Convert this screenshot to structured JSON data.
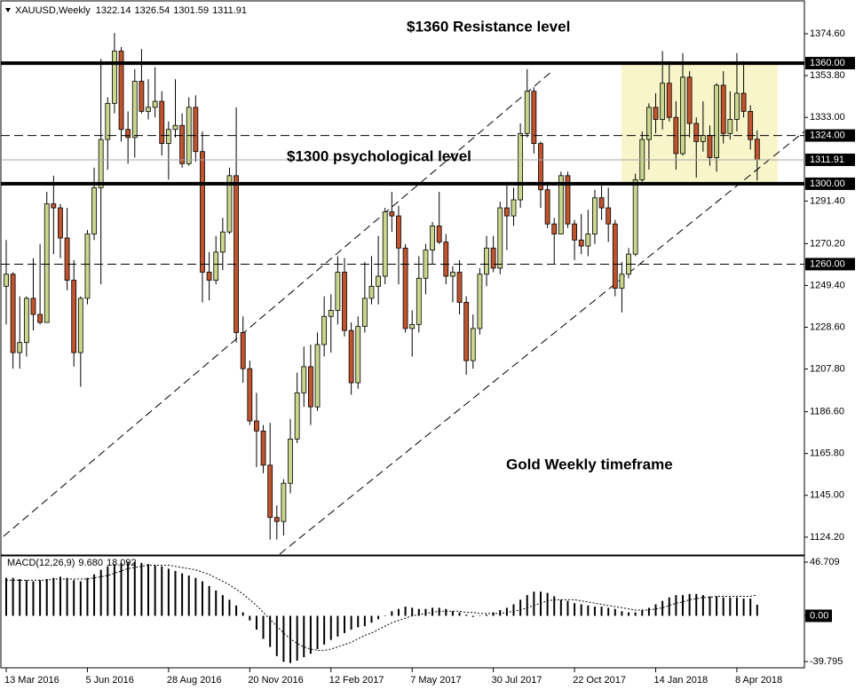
{
  "chart_data": [
    {
      "type": "candlestick",
      "title": "XAUUSD,Weekly",
      "categories": [
        "13 Mar 2016",
        null,
        null,
        null,
        null,
        null,
        null,
        null,
        null,
        null,
        null,
        null,
        "5 Jun 2016",
        null,
        null,
        null,
        null,
        null,
        null,
        null,
        null,
        null,
        null,
        null,
        "28 Aug 2016",
        null,
        null,
        null,
        null,
        null,
        null,
        null,
        null,
        null,
        null,
        null,
        "20 Nov 2016",
        null,
        null,
        null,
        null,
        null,
        null,
        null,
        null,
        null,
        null,
        null,
        "12 Feb 2017",
        null,
        null,
        null,
        null,
        null,
        null,
        null,
        null,
        null,
        null,
        null,
        "7 May 2017",
        null,
        null,
        null,
        null,
        null,
        null,
        null,
        null,
        null,
        null,
        null,
        "30 Jul 2017",
        null,
        null,
        null,
        null,
        null,
        null,
        null,
        null,
        null,
        null,
        null,
        "22 Oct 2017",
        null,
        null,
        null,
        null,
        null,
        null,
        null,
        null,
        null,
        null,
        null,
        "14 Jan 2018",
        null,
        null,
        null,
        null,
        null,
        null,
        null,
        null,
        null,
        null,
        null,
        "8 Apr 2018",
        null,
        null,
        null
      ],
      "open": [
        1249,
        1255,
        1216,
        1221,
        1243,
        1235,
        1231,
        1290,
        1288,
        1273,
        1252,
        1216,
        1243,
        1275,
        1298,
        1322,
        1340,
        1366,
        1327,
        1323,
        1351,
        1336,
        1338,
        1341,
        1320,
        1327,
        1329,
        1310,
        1338,
        1316,
        1256,
        1252,
        1266,
        1276,
        1304,
        1226,
        1208,
        1182,
        1177,
        1160,
        1134,
        1132,
        1151,
        1173,
        1196,
        1209,
        1189,
        1220,
        1234,
        1237,
        1256,
        1227,
        1201,
        1229,
        1243,
        1249,
        1254,
        1286,
        1284,
        1268,
        1228,
        1230,
        1253,
        1267,
        1279,
        1271,
        1254,
        1256,
        1241,
        1212,
        1228,
        1255,
        1268,
        1258,
        1288,
        1284,
        1292,
        1325,
        1346,
        1320,
        1297,
        1280,
        1275,
        1304,
        1280,
        1272,
        1269,
        1275,
        1293,
        1288,
        1280,
        1248,
        1255,
        1265,
        1302,
        1322,
        1338,
        1332,
        1350,
        1333,
        1315,
        1353,
        1330,
        1321,
        1324,
        1313,
        1349,
        1325,
        1332,
        1345,
        1336,
        1322.14
      ],
      "high": [
        1272,
        1256,
        1244,
        1244,
        1263,
        1270,
        1296,
        1304,
        1290,
        1288,
        1262,
        1244,
        1277,
        1308,
        1362,
        1343,
        1375,
        1368,
        1336,
        1357,
        1367,
        1352,
        1358,
        1346,
        1331,
        1352,
        1335,
        1343,
        1344,
        1326,
        1266,
        1274,
        1283,
        1308,
        1338,
        1234,
        1212,
        1196,
        1180,
        1181,
        1140,
        1153,
        1183,
        1206,
        1219,
        1220,
        1226,
        1244,
        1245,
        1264,
        1263,
        1231,
        1234,
        1261,
        1264,
        1274,
        1288,
        1296,
        1289,
        1270,
        1237,
        1264,
        1270,
        1281,
        1296,
        1275,
        1259,
        1262,
        1244,
        1235,
        1258,
        1274,
        1274,
        1291,
        1301,
        1298,
        1330,
        1357,
        1348,
        1321,
        1301,
        1283,
        1306,
        1306,
        1282,
        1285,
        1287,
        1297,
        1299,
        1298,
        1282,
        1261,
        1268,
        1305,
        1326,
        1340,
        1345,
        1366,
        1361,
        1341,
        1365,
        1356,
        1333,
        1341,
        1329,
        1350,
        1356,
        1346,
        1365,
        1361,
        1339,
        1326.54
      ],
      "low": [
        1230,
        1208,
        1208,
        1214,
        1227,
        1230,
        1231,
        1265,
        1263,
        1247,
        1209,
        1199,
        1240,
        1272,
        1250,
        1307,
        1335,
        1321,
        1310,
        1313,
        1335,
        1332,
        1333,
        1314,
        1302,
        1323,
        1308,
        1309,
        1311,
        1241,
        1242,
        1250,
        1257,
        1275,
        1221,
        1201,
        1180,
        1159,
        1156,
        1123,
        1123,
        1125,
        1146,
        1171,
        1189,
        1180,
        1187,
        1214,
        1216,
        1230,
        1224,
        1195,
        1198,
        1226,
        1240,
        1240,
        1250,
        1276,
        1250,
        1226,
        1214,
        1226,
        1245,
        1260,
        1270,
        1250,
        1241,
        1235,
        1205,
        1208,
        1225,
        1249,
        1256,
        1255,
        1267,
        1279,
        1288,
        1323,
        1315,
        1288,
        1278,
        1260,
        1275,
        1278,
        1262,
        1265,
        1264,
        1270,
        1282,
        1271,
        1244,
        1236,
        1253,
        1264,
        1301,
        1307,
        1325,
        1327,
        1331,
        1307,
        1314,
        1323,
        1303,
        1316,
        1309,
        1306,
        1320,
        1322,
        1326,
        1333,
        1317,
        1301.59
      ],
      "close": [
        1255,
        1216,
        1221,
        1243,
        1235,
        1231,
        1290,
        1288,
        1273,
        1252,
        1216,
        1243,
        1275,
        1298,
        1322,
        1340,
        1366,
        1327,
        1323,
        1351,
        1336,
        1338,
        1341,
        1320,
        1327,
        1329,
        1310,
        1338,
        1316,
        1256,
        1252,
        1266,
        1276,
        1304,
        1226,
        1208,
        1182,
        1177,
        1160,
        1134,
        1132,
        1151,
        1173,
        1196,
        1209,
        1189,
        1220,
        1234,
        1237,
        1256,
        1227,
        1201,
        1229,
        1243,
        1249,
        1254,
        1286,
        1284,
        1268,
        1228,
        1230,
        1253,
        1267,
        1279,
        1271,
        1254,
        1256,
        1241,
        1212,
        1228,
        1255,
        1268,
        1258,
        1288,
        1284,
        1292,
        1325,
        1346,
        1320,
        1297,
        1280,
        1275,
        1304,
        1280,
        1272,
        1269,
        1275,
        1293,
        1288,
        1280,
        1248,
        1255,
        1265,
        1302,
        1322,
        1338,
        1332,
        1350,
        1333,
        1315,
        1353,
        1330,
        1321,
        1324,
        1313,
        1349,
        1325,
        1332,
        1345,
        1336,
        1322,
        1311.91
      ],
      "up_color": "#c8d78d",
      "down_color": "#c0542e",
      "ylim": [
        1115.3,
        1391.4
      ],
      "yticks": [
        {
          "value": 1374.6,
          "label": "1374.60"
        },
        {
          "value": 1353.8,
          "label": "1353.80"
        },
        {
          "value": 1333,
          "label": "1333.00"
        },
        {
          "value": 1291.4,
          "label": "1291.40"
        },
        {
          "value": 1270.2,
          "label": "1270.20"
        },
        {
          "value": 1249.4,
          "label": "1249.40"
        },
        {
          "value": 1228.6,
          "label": "1228.60"
        },
        {
          "value": 1207.8,
          "label": "1207.80"
        },
        {
          "value": 1186.6,
          "label": "1186.60"
        },
        {
          "value": 1165.8,
          "label": "1165.80"
        },
        {
          "value": 1145,
          "label": "1145.00"
        },
        {
          "value": 1124.2,
          "label": "1124.20"
        }
      ],
      "levels": [
        {
          "value": 1360,
          "label": "1360.00",
          "style": "solid"
        },
        {
          "value": 1324,
          "label": "1324.00",
          "style": "dashed"
        },
        {
          "value": 1300,
          "label": "1300.00",
          "style": "solid"
        },
        {
          "value": 1260,
          "label": "1260.00",
          "style": "dashed"
        }
      ],
      "annotations": [
        "$1360 Resistance level",
        "$1300 psychological level",
        "Gold Weekly timeframe"
      ]
    },
    {
      "type": "macd",
      "title": "MACD(12,26,9)",
      "readout": [
        {
          "value": 9.68,
          "label": "9.680"
        },
        {
          "value": 18.092,
          "label": "18.092"
        }
      ],
      "series": [
        {
          "name": "MACD",
          "color": "#000000",
          "values": [
            33,
            33,
            32,
            31,
            30,
            31,
            32,
            33,
            34,
            33,
            31,
            30,
            33,
            36,
            40,
            43,
            45,
            46,
            47,
            47,
            46,
            45,
            44,
            43,
            41,
            39,
            37,
            35,
            33,
            30,
            26,
            22,
            18,
            14,
            9,
            3,
            -4,
            -12,
            -20,
            -27,
            -35,
            -40,
            -41,
            -39,
            -36,
            -33,
            -29,
            -25,
            -21,
            -18,
            -15,
            -12,
            -10,
            -9,
            -6,
            -3,
            0,
            4,
            6,
            8,
            7,
            6,
            6,
            7,
            7,
            6,
            4,
            3,
            1,
            -1,
            0,
            1,
            3,
            5,
            7,
            10,
            14,
            18,
            21,
            21,
            20,
            17,
            14,
            13,
            11,
            10,
            9,
            8,
            8,
            7,
            6,
            4,
            3,
            3,
            5,
            7,
            10,
            13,
            16,
            18,
            18,
            19,
            19,
            18,
            17,
            17,
            16,
            16,
            16,
            15,
            15,
            9.68
          ]
        },
        {
          "name": "Signal",
          "color": "#000000",
          "values": [
            31,
            31,
            31,
            31,
            31,
            31,
            31,
            32,
            32,
            32,
            32,
            32,
            32,
            33,
            34,
            35,
            37,
            39,
            41,
            42,
            43,
            44,
            44,
            44,
            44,
            43,
            42,
            41,
            40,
            38,
            36,
            33,
            30,
            27,
            23,
            19,
            14,
            9,
            3,
            -3,
            -9,
            -15,
            -20,
            -24,
            -27,
            -29,
            -30,
            -30,
            -29,
            -27,
            -25,
            -23,
            -20,
            -17,
            -15,
            -12,
            -9,
            -6,
            -4,
            -2,
            0,
            1,
            2,
            3,
            4,
            4,
            4,
            4,
            3,
            3,
            2,
            2,
            2,
            2,
            3,
            4,
            5,
            7,
            9,
            11,
            13,
            14,
            14,
            14,
            14,
            13,
            12,
            11,
            10,
            9,
            8,
            7,
            6,
            5,
            5,
            5,
            6,
            7,
            9,
            11,
            12,
            14,
            15,
            16,
            16,
            17,
            17,
            17,
            17,
            17,
            17,
            18.092
          ]
        }
      ],
      "ylim": [
        -45.2,
        52.1
      ],
      "yticks": [
        46.709,
        {
          "value": 0,
          "label": "0.00"
        },
        -39.795
      ]
    }
  ]
}
